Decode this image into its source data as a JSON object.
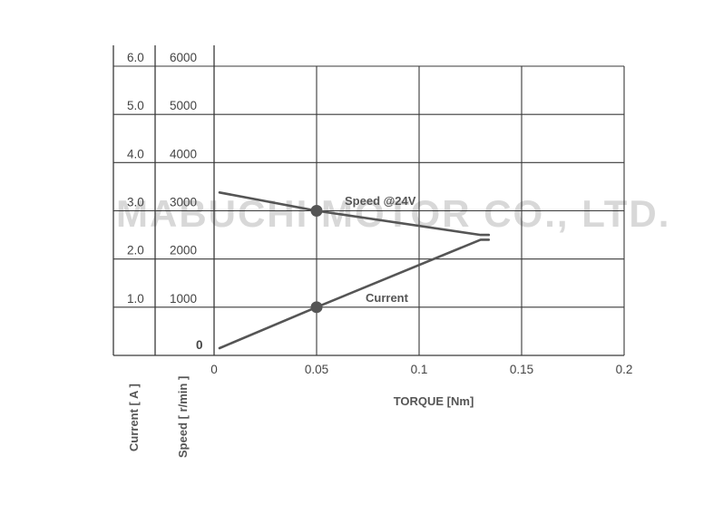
{
  "chart_data": {
    "type": "line",
    "xlabel": "TORQUE [Nm]",
    "x_ticks": [
      "0",
      "0.05",
      "0.1",
      "0.15",
      "0.2"
    ],
    "xlim": [
      0,
      0.2
    ],
    "current_axis": {
      "label": "Current [ A ]",
      "ticks": [
        "1.0",
        "2.0",
        "3.0",
        "4.0",
        "5.0",
        "6.0"
      ],
      "range": [
        0,
        6.0
      ]
    },
    "speed_axis": {
      "label": "Speed [ r/min ]",
      "ticks": [
        "0",
        "1000",
        "2000",
        "3000",
        "4000",
        "5000",
        "6000"
      ],
      "range": [
        0,
        6000
      ]
    },
    "grid": true,
    "watermark": "MABUCHI MOTOR CO., LTD.",
    "series": [
      {
        "name": "Speed @24V",
        "axis": "speed",
        "x": [
          0,
          0.05,
          0.13
        ],
        "y": [
          3380,
          3000,
          2500
        ],
        "marker_at": [
          0.05,
          3000
        ],
        "color": "#555555"
      },
      {
        "name": "Current",
        "axis": "current",
        "x": [
          0,
          0.05,
          0.13
        ],
        "y": [
          0.15,
          1.0,
          2.4
        ],
        "marker_at": [
          0.05,
          1.0
        ],
        "color": "#555555"
      }
    ]
  }
}
